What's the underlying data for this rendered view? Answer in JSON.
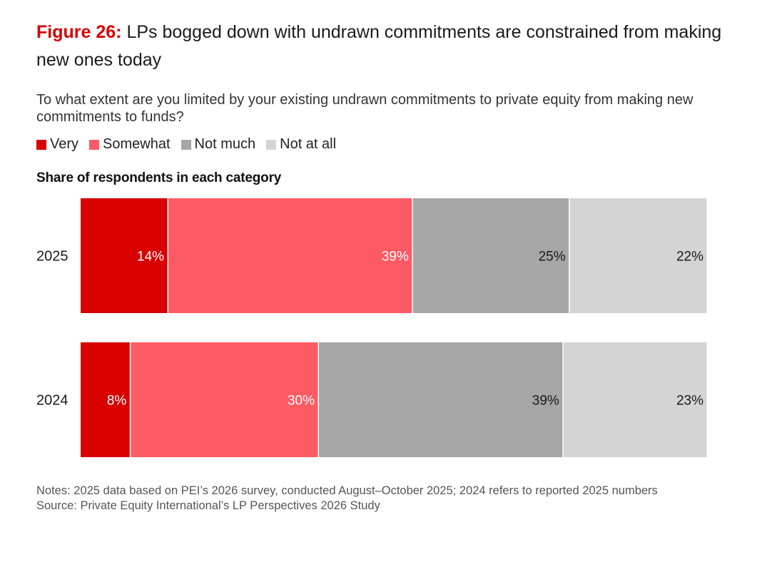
{
  "header": {
    "figure_label": "Figure 26:",
    "title": "LPs bogged down with undrawn commitments are constrained from making new ones today",
    "question": "To what extent are you limited by your existing undrawn commitments to private equity from making new commitments to funds?"
  },
  "legend": [
    {
      "label": "Very",
      "color": "#d90000"
    },
    {
      "label": "Somewhat",
      "color": "#fe5a64"
    },
    {
      "label": "Not much",
      "color": "#a6a6a6"
    },
    {
      "label": "Not at all",
      "color": "#d4d4d4"
    }
  ],
  "subheading": "Share of respondents in each category",
  "chart_data": {
    "type": "bar",
    "orientation": "horizontal",
    "stacked": true,
    "categories": [
      "2025",
      "2024"
    ],
    "series": [
      {
        "name": "Very",
        "values": [
          14,
          8
        ],
        "labels": [
          "14%",
          "8%"
        ],
        "color": "#d90000",
        "label_color": "#ffffff"
      },
      {
        "name": "Somewhat",
        "values": [
          39,
          30
        ],
        "labels": [
          "39%",
          "30%"
        ],
        "color": "#fe5a64",
        "label_color": "#ffffff"
      },
      {
        "name": "Not much",
        "values": [
          25,
          39
        ],
        "labels": [
          "25%",
          "39%"
        ],
        "color": "#a6a6a6",
        "label_color": "#1a1a1a"
      },
      {
        "name": "Not at all",
        "values": [
          22,
          23
        ],
        "labels": [
          "22%",
          "23%"
        ],
        "color": "#d4d4d4",
        "label_color": "#1a1a1a"
      }
    ],
    "xlim": [
      0,
      100
    ],
    "grid": false
  },
  "footer": {
    "notes": "Notes: 2025 data based on PEI’s 2026 survey, conducted August–October 2025; 2024 refers to reported 2025 numbers",
    "source": "Source: Private Equity International’s LP Perspectives 2026 Study"
  }
}
